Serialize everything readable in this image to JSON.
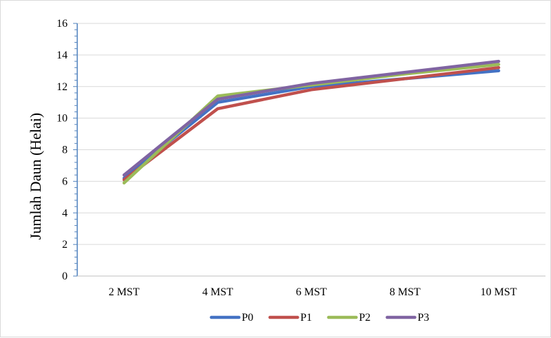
{
  "chart_data": {
    "type": "line",
    "ylabel": "Jumlah Daun (Helai)",
    "xlabel": "",
    "categories": [
      "2 MST",
      "4 MST",
      "6 MST",
      "8 MST",
      "10 MST"
    ],
    "ylim": [
      0,
      16
    ],
    "yticks": [
      0,
      2,
      4,
      6,
      8,
      10,
      12,
      14,
      16
    ],
    "grid": true,
    "legend_position": "bottom",
    "series": [
      {
        "name": "P0",
        "color": "#4472c4",
        "values": [
          6.2,
          11.0,
          12.0,
          12.5,
          13.0
        ]
      },
      {
        "name": "P1",
        "color": "#c0504d",
        "values": [
          6.1,
          10.6,
          11.8,
          12.5,
          13.2
        ]
      },
      {
        "name": "P2",
        "color": "#9bbb59",
        "values": [
          5.9,
          11.4,
          12.1,
          12.8,
          13.4
        ]
      },
      {
        "name": "P3",
        "color": "#8064a2",
        "values": [
          6.4,
          11.2,
          12.2,
          12.9,
          13.6
        ]
      }
    ]
  }
}
